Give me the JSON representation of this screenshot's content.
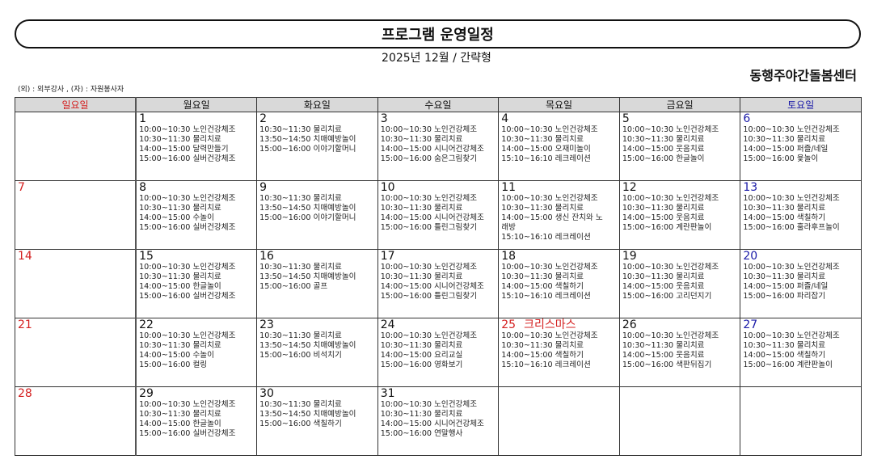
{
  "header": {
    "title": "프로그램 운영일정",
    "subtitle": "2025년 12월 / 간략형",
    "center_name": "동행주야간돌봄센터",
    "legend": "(외) : 외부강사 , (자) : 자원봉사자"
  },
  "colors": {
    "sunday": "#d42020",
    "saturday": "#1a1aa8",
    "header_bg": "#d9d9d9"
  },
  "weekdays": [
    "일요일",
    "월요일",
    "화요일",
    "수요일",
    "목요일",
    "금요일",
    "토요일"
  ],
  "weeks": [
    [
      {
        "day": "",
        "events": []
      },
      {
        "day": "1",
        "events": [
          "10:00~10:30 노인건강체조",
          "10:30~11:30 물리치료",
          "14:00~15:00 달력만들기",
          "15:00~16:00 실버건강체조"
        ]
      },
      {
        "day": "2",
        "events": [
          "10:30~11:30 물리치료",
          "13:50~14:50 치매예방놀이",
          "15:00~16:00 이야기할머니"
        ]
      },
      {
        "day": "3",
        "events": [
          "10:00~10:30 노인건강체조",
          "10:30~11:30 물리치료",
          "14:00~15:00 시니어건강체조",
          "15:00~16:00 숨은그림찾기"
        ]
      },
      {
        "day": "4",
        "events": [
          "10:00~10:30 노인건강체조",
          "10:30~11:30 물리치료",
          "14:00~15:00 오재미놀이",
          "15:10~16:10 레크레이션"
        ]
      },
      {
        "day": "5",
        "events": [
          "10:00~10:30 노인건강체조",
          "10:30~11:30 물리치료",
          "14:00~15:00 웃음치료",
          "15:00~16:00 한글놀이"
        ]
      },
      {
        "day": "6",
        "events": [
          "10:00~10:30 노인건강체조",
          "10:30~11:30 물리치료",
          "14:00~15:00 퍼즐/네일",
          "15:00~16:00 윷놀이"
        ]
      }
    ],
    [
      {
        "day": "7",
        "events": []
      },
      {
        "day": "8",
        "events": [
          "10:00~10:30 노인건강체조",
          "10:30~11:30 물리치료",
          "14:00~15:00 수놀이",
          "15:00~16:00 실버건강체조"
        ]
      },
      {
        "day": "9",
        "events": [
          "10:30~11:30 물리치료",
          "13:50~14:50 치매예방놀이",
          "15:00~16:00 이야기할머니"
        ]
      },
      {
        "day": "10",
        "events": [
          "10:00~10:30 노인건강체조",
          "10:30~11:30 물리치료",
          "14:00~15:00 시니어건강체조",
          "15:00~16:00 틀린그림찾기"
        ]
      },
      {
        "day": "11",
        "events": [
          "10:00~10:30 노인건강체조",
          "10:30~11:30 물리치료",
          "14:00~15:00 생신 잔치와 노",
          "래방",
          "15:10~16:10 레크레이션"
        ]
      },
      {
        "day": "12",
        "events": [
          "10:00~10:30 노인건강체조",
          "10:30~11:30 물리치료",
          "14:00~15:00 웃음치료",
          "15:00~16:00 계란판놀이"
        ]
      },
      {
        "day": "13",
        "events": [
          "10:00~10:30 노인건강체조",
          "10:30~11:30 물리치료",
          "14:00~15:00 색칠하기",
          "15:00~16:00 훌라후프놀이"
        ]
      }
    ],
    [
      {
        "day": "14",
        "events": []
      },
      {
        "day": "15",
        "events": [
          "10:00~10:30 노인건강체조",
          "10:30~11:30 물리치료",
          "14:00~15:00 한글놀이",
          "15:00~16:00 실버건강체조"
        ]
      },
      {
        "day": "16",
        "events": [
          "10:30~11:30 물리치료",
          "13:50~14:50 치매예방놀이",
          "15:00~16:00 골프"
        ]
      },
      {
        "day": "17",
        "events": [
          "10:00~10:30 노인건강체조",
          "10:30~11:30 물리치료",
          "14:00~15:00 시니어건강체조",
          "15:00~16:00 틀린그림찾기"
        ]
      },
      {
        "day": "18",
        "events": [
          "10:00~10:30 노인건강체조",
          "10:30~11:30 물리치료",
          "14:00~15:00 색칠하기",
          "15:10~16:10 레크레이션"
        ]
      },
      {
        "day": "19",
        "events": [
          "10:00~10:30 노인건강체조",
          "10:30~11:30 물리치료",
          "14:00~15:00 웃음치료",
          "15:00~16:00 고리던지기"
        ]
      },
      {
        "day": "20",
        "events": [
          "10:00~10:30 노인건강체조",
          "10:30~11:30 물리치료",
          "14:00~15:00 퍼즐/네일",
          "15:00~16:00 파리잡기"
        ]
      }
    ],
    [
      {
        "day": "21",
        "events": []
      },
      {
        "day": "22",
        "events": [
          "10:00~10:30 노인건강체조",
          "10:30~11:30 물리치료",
          "14:00~15:00 수놀이",
          "15:00~16:00 컬링"
        ]
      },
      {
        "day": "23",
        "events": [
          "10:30~11:30 물리치료",
          "13:50~14:50 치매예방놀이",
          "15:00~16:00 비석치기"
        ]
      },
      {
        "day": "24",
        "events": [
          "10:00~10:30 노인건강체조",
          "10:30~11:30 물리치료",
          "14:00~15:00 요리교실",
          "15:00~16:00 영화보기"
        ]
      },
      {
        "day": "25",
        "holiday": "크리스마스",
        "events": [
          "10:00~10:30 노인건강체조",
          "10:30~11:30 물리치료",
          "14:00~15:00 색칠하기",
          "15:10~16:10 레크레이션"
        ]
      },
      {
        "day": "26",
        "events": [
          "10:00~10:30 노인건강체조",
          "10:30~11:30 물리치료",
          "14:00~15:00 웃음치료",
          "15:00~16:00 색판뒤집기"
        ]
      },
      {
        "day": "27",
        "events": [
          "10:00~10:30 노인건강체조",
          "10:30~11:30 물리치료",
          "14:00~15:00 색칠하기",
          "15:00~16:00 계란판놀이"
        ]
      }
    ],
    [
      {
        "day": "28",
        "events": []
      },
      {
        "day": "29",
        "events": [
          "10:00~10:30 노인건강체조",
          "10:30~11:30 물리치료",
          "14:00~15:00 한글놀이",
          "15:00~16:00 실버건강체조"
        ]
      },
      {
        "day": "30",
        "events": [
          "10:30~11:30 물리치료",
          "13:50~14:50 치매예방놀이",
          "15:00~16:00 색칠하기"
        ]
      },
      {
        "day": "31",
        "events": [
          "10:00~10:30 노인건강체조",
          "10:30~11:30 물리치료",
          "14:00~15:00 시니어건강체조",
          "15:00~16:00 연말행사"
        ]
      },
      {
        "day": "",
        "events": []
      },
      {
        "day": "",
        "events": []
      },
      {
        "day": "",
        "events": []
      }
    ]
  ]
}
